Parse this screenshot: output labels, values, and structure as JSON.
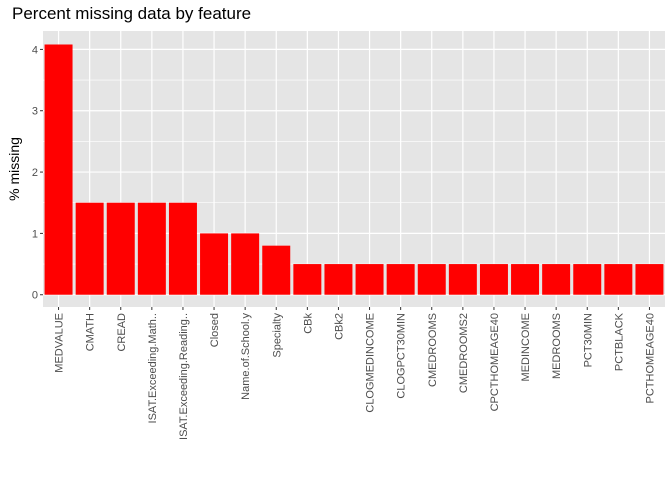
{
  "chart_data": {
    "type": "bar",
    "title": "Percent missing data by feature",
    "xlabel": "",
    "ylabel": "% missing",
    "categories": [
      "MEDVALUE",
      "CMATH",
      "CREAD",
      "ISAT.Exceeding.Math..",
      "ISAT.Exceeding.Reading..",
      "Closed",
      "Name.of.School.y",
      "Specialty",
      "CBk",
      "CBk2",
      "CLOGMEDINCOME",
      "CLOGPCT30MIN",
      "CMEDROOMS",
      "CMEDROOMS2",
      "CPCTHOMEAGE40",
      "MEDINCOME",
      "MEDROOMS",
      "PCT30MIN",
      "PCTBLACK",
      "PCTHOMEAGE40"
    ],
    "values": [
      4.08,
      1.5,
      1.5,
      1.5,
      1.5,
      1.0,
      1.0,
      0.8,
      0.5,
      0.5,
      0.5,
      0.5,
      0.5,
      0.5,
      0.5,
      0.5,
      0.5,
      0.5,
      0.5,
      0.5
    ],
    "yticks": [
      0,
      1,
      2,
      3,
      4
    ],
    "ylim": [
      -0.2,
      4.3
    ],
    "bar_color": "#ff0000",
    "panel_color": "#e5e5e5",
    "grid_color": "#ffffff",
    "grid": true,
    "legend": "none"
  }
}
